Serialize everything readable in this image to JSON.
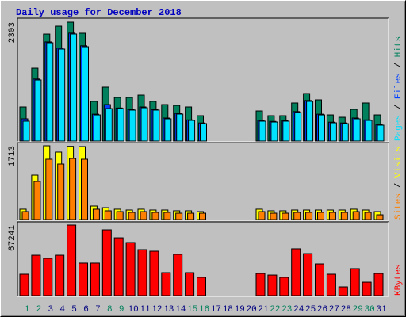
{
  "chart_data": [
    {
      "type": "bar",
      "title": "Daily usage for December 2018",
      "legend_separator": " / ",
      "ylim": [
        0,
        2303
      ],
      "yticks": [
        2303
      ],
      "series": [
        {
          "name": "Hits",
          "color": "#00805c",
          "values": [
            660,
            1412,
            2072,
            2226,
            2303,
            2088,
            768,
            1044,
            844,
            844,
            890,
            768,
            706,
            690,
            660,
            491,
            0,
            0,
            0,
            0,
            583,
            491,
            491,
            737,
            921,
            798,
            506,
            460,
            614,
            737,
            506
          ]
        },
        {
          "name": "Files",
          "color": "#0040ff",
          "values": [
            430,
            1200,
            1920,
            1800,
            2090,
            1845,
            520,
            706,
            640,
            610,
            660,
            610,
            445,
            535,
            410,
            350,
            0,
            0,
            0,
            0,
            400,
            380,
            395,
            570,
            785,
            520,
            365,
            350,
            445,
            410,
            320
          ]
        },
        {
          "name": "Pages",
          "color": "#00e0ff",
          "values": [
            384,
            1182,
            1904,
            1781,
            2073,
            1827,
            506,
            629,
            629,
            599,
            645,
            599,
            430,
            522,
            399,
            338,
            0,
            0,
            0,
            0,
            384,
            368,
            384,
            553,
            768,
            506,
            353,
            338,
            430,
            399,
            307
          ]
        }
      ]
    },
    {
      "type": "bar",
      "ylim": [
        0,
        1713
      ],
      "yticks": [
        1713
      ],
      "series": [
        {
          "name": "Visits",
          "color": "#ffff00",
          "values": [
            240,
            1031,
            1713,
            1566,
            1700,
            1695,
            313,
            276,
            240,
            221,
            240,
            221,
            221,
            203,
            203,
            184,
            0,
            0,
            0,
            0,
            240,
            203,
            203,
            221,
            221,
            221,
            221,
            221,
            240,
            221,
            184
          ]
        },
        {
          "name": "Sites",
          "color": "#ff8000",
          "values": [
            184,
            884,
            1400,
            1289,
            1418,
            1400,
            240,
            203,
            184,
            166,
            184,
            166,
            166,
            147,
            147,
            147,
            0,
            0,
            0,
            0,
            184,
            147,
            147,
            166,
            166,
            166,
            166,
            166,
            184,
            166,
            110
          ]
        }
      ]
    },
    {
      "type": "bar",
      "ylim": [
        0,
        67241
      ],
      "yticks": [
        67241
      ],
      "categories": [
        "1",
        "2",
        "3",
        "4",
        "5",
        "6",
        "7",
        "8",
        "9",
        "10",
        "11",
        "12",
        "13",
        "14",
        "15",
        "16",
        "17",
        "18",
        "19",
        "20",
        "21",
        "22",
        "23",
        "24",
        "25",
        "26",
        "27",
        "28",
        "29",
        "30",
        "31"
      ],
      "tick_label_colors": [
        "#00805c",
        "#00805c",
        "#000080",
        "#000080",
        "#000080",
        "#000080",
        "#000080",
        "#00805c",
        "#00805c",
        "#000080",
        "#000080",
        "#000080",
        "#000080",
        "#000080",
        "#00805c",
        "#00805c",
        "#000080",
        "#000080",
        "#000080",
        "#000080",
        "#000080",
        "#00805c",
        "#00805c",
        "#000080",
        "#000080",
        "#000080",
        "#000080",
        "#000080",
        "#00805c",
        "#00805c",
        "#000080"
      ],
      "series": [
        {
          "name": "KBytes",
          "color": "#ff0000",
          "values": [
            20400,
            38500,
            35500,
            38500,
            67241,
            31000,
            31000,
            62700,
            55100,
            50600,
            43800,
            42300,
            21900,
            39300,
            21900,
            17400,
            0,
            0,
            0,
            0,
            21100,
            19600,
            17400,
            44600,
            40000,
            30200,
            20400,
            8300,
            25700,
            12800,
            21100
          ]
        }
      ]
    }
  ]
}
